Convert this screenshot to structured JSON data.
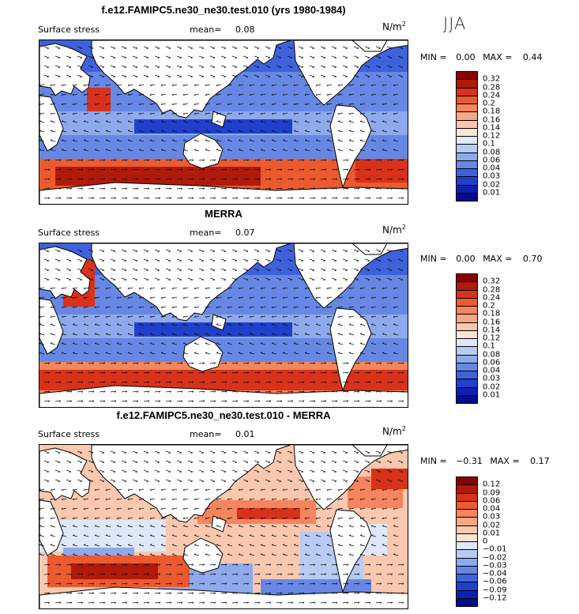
{
  "season": "JJA",
  "panels": [
    {
      "title": "f.e12.FAMIPC5.ne30_ne30.test.010 (yrs 1980-1984)",
      "variable": "Surface stress",
      "mean_label": "mean=",
      "mean_value": "0.08",
      "units_base": "N/m",
      "units_exp": "2",
      "min_label": "MIN =",
      "min_value": "0.00",
      "max_label": "MAX =",
      "max_value": "0.44",
      "colorbar": {
        "levels": [
          "0.32",
          "0.28",
          "0.24",
          "0.2",
          "0.18",
          "0.16",
          "0.14",
          "0.12",
          "0.1",
          "0.08",
          "0.06",
          "0.04",
          "0.03",
          "0.02",
          "0.01"
        ],
        "colors": [
          "#8b0000",
          "#b01a0a",
          "#d8321a",
          "#ec5a30",
          "#f4855e",
          "#f6a786",
          "#f9c8ae",
          "#fde5d4",
          "#dfe8f8",
          "#b8cbf2",
          "#8eaaec",
          "#6688e4",
          "#3f62dc",
          "#1f3fcc",
          "#0c20b0",
          "#040c8a"
        ]
      },
      "map_style": "mean"
    },
    {
      "title": "MERRA",
      "variable": "Surface stress",
      "mean_label": "mean=",
      "mean_value": "0.07",
      "units_base": "N/m",
      "units_exp": "2",
      "min_label": "MIN =",
      "min_value": "0.00",
      "max_label": "MAX =",
      "max_value": "0.70",
      "colorbar": {
        "levels": [
          "0.32",
          "0.28",
          "0.24",
          "0.2",
          "0.18",
          "0.16",
          "0.14",
          "0.12",
          "0.1",
          "0.08",
          "0.06",
          "0.04",
          "0.03",
          "0.02",
          "0.01"
        ],
        "colors": [
          "#8b0000",
          "#b01a0a",
          "#d8321a",
          "#ec5a30",
          "#f4855e",
          "#f6a786",
          "#f9c8ae",
          "#fde5d4",
          "#dfe8f8",
          "#b8cbf2",
          "#8eaaec",
          "#6688e4",
          "#3f62dc",
          "#1f3fcc",
          "#0c20b0",
          "#040c8a"
        ]
      },
      "map_style": "mean"
    },
    {
      "title": "f.e12.FAMIPC5.ne30_ne30.test.010 - MERRA",
      "variable": "Surface stress",
      "mean_label": "mean=",
      "mean_value": "0.01",
      "units_base": "N/m",
      "units_exp": "2",
      "min_label": "MIN =",
      "min_value": "−0.31",
      "max_label": "MAX =",
      "max_value": "0.17",
      "colorbar": {
        "levels": [
          "0.12",
          "0.09",
          "0.06",
          "0.04",
          "0.03",
          "0.02",
          "0.01",
          "0",
          "−0.01",
          "−0.02",
          "−0.03",
          "−0.04",
          "−0.06",
          "−0.09",
          "−0.12"
        ],
        "colors": [
          "#8b0000",
          "#b01a0a",
          "#d8321a",
          "#ec5a30",
          "#f4855e",
          "#f6a786",
          "#f9c8ae",
          "#fde5d4",
          "#dfe8f8",
          "#b8cbf2",
          "#8eaaec",
          "#6688e4",
          "#3f62dc",
          "#1f3fcc",
          "#0c20b0",
          "#040c8a"
        ]
      },
      "map_style": "diff"
    }
  ]
}
